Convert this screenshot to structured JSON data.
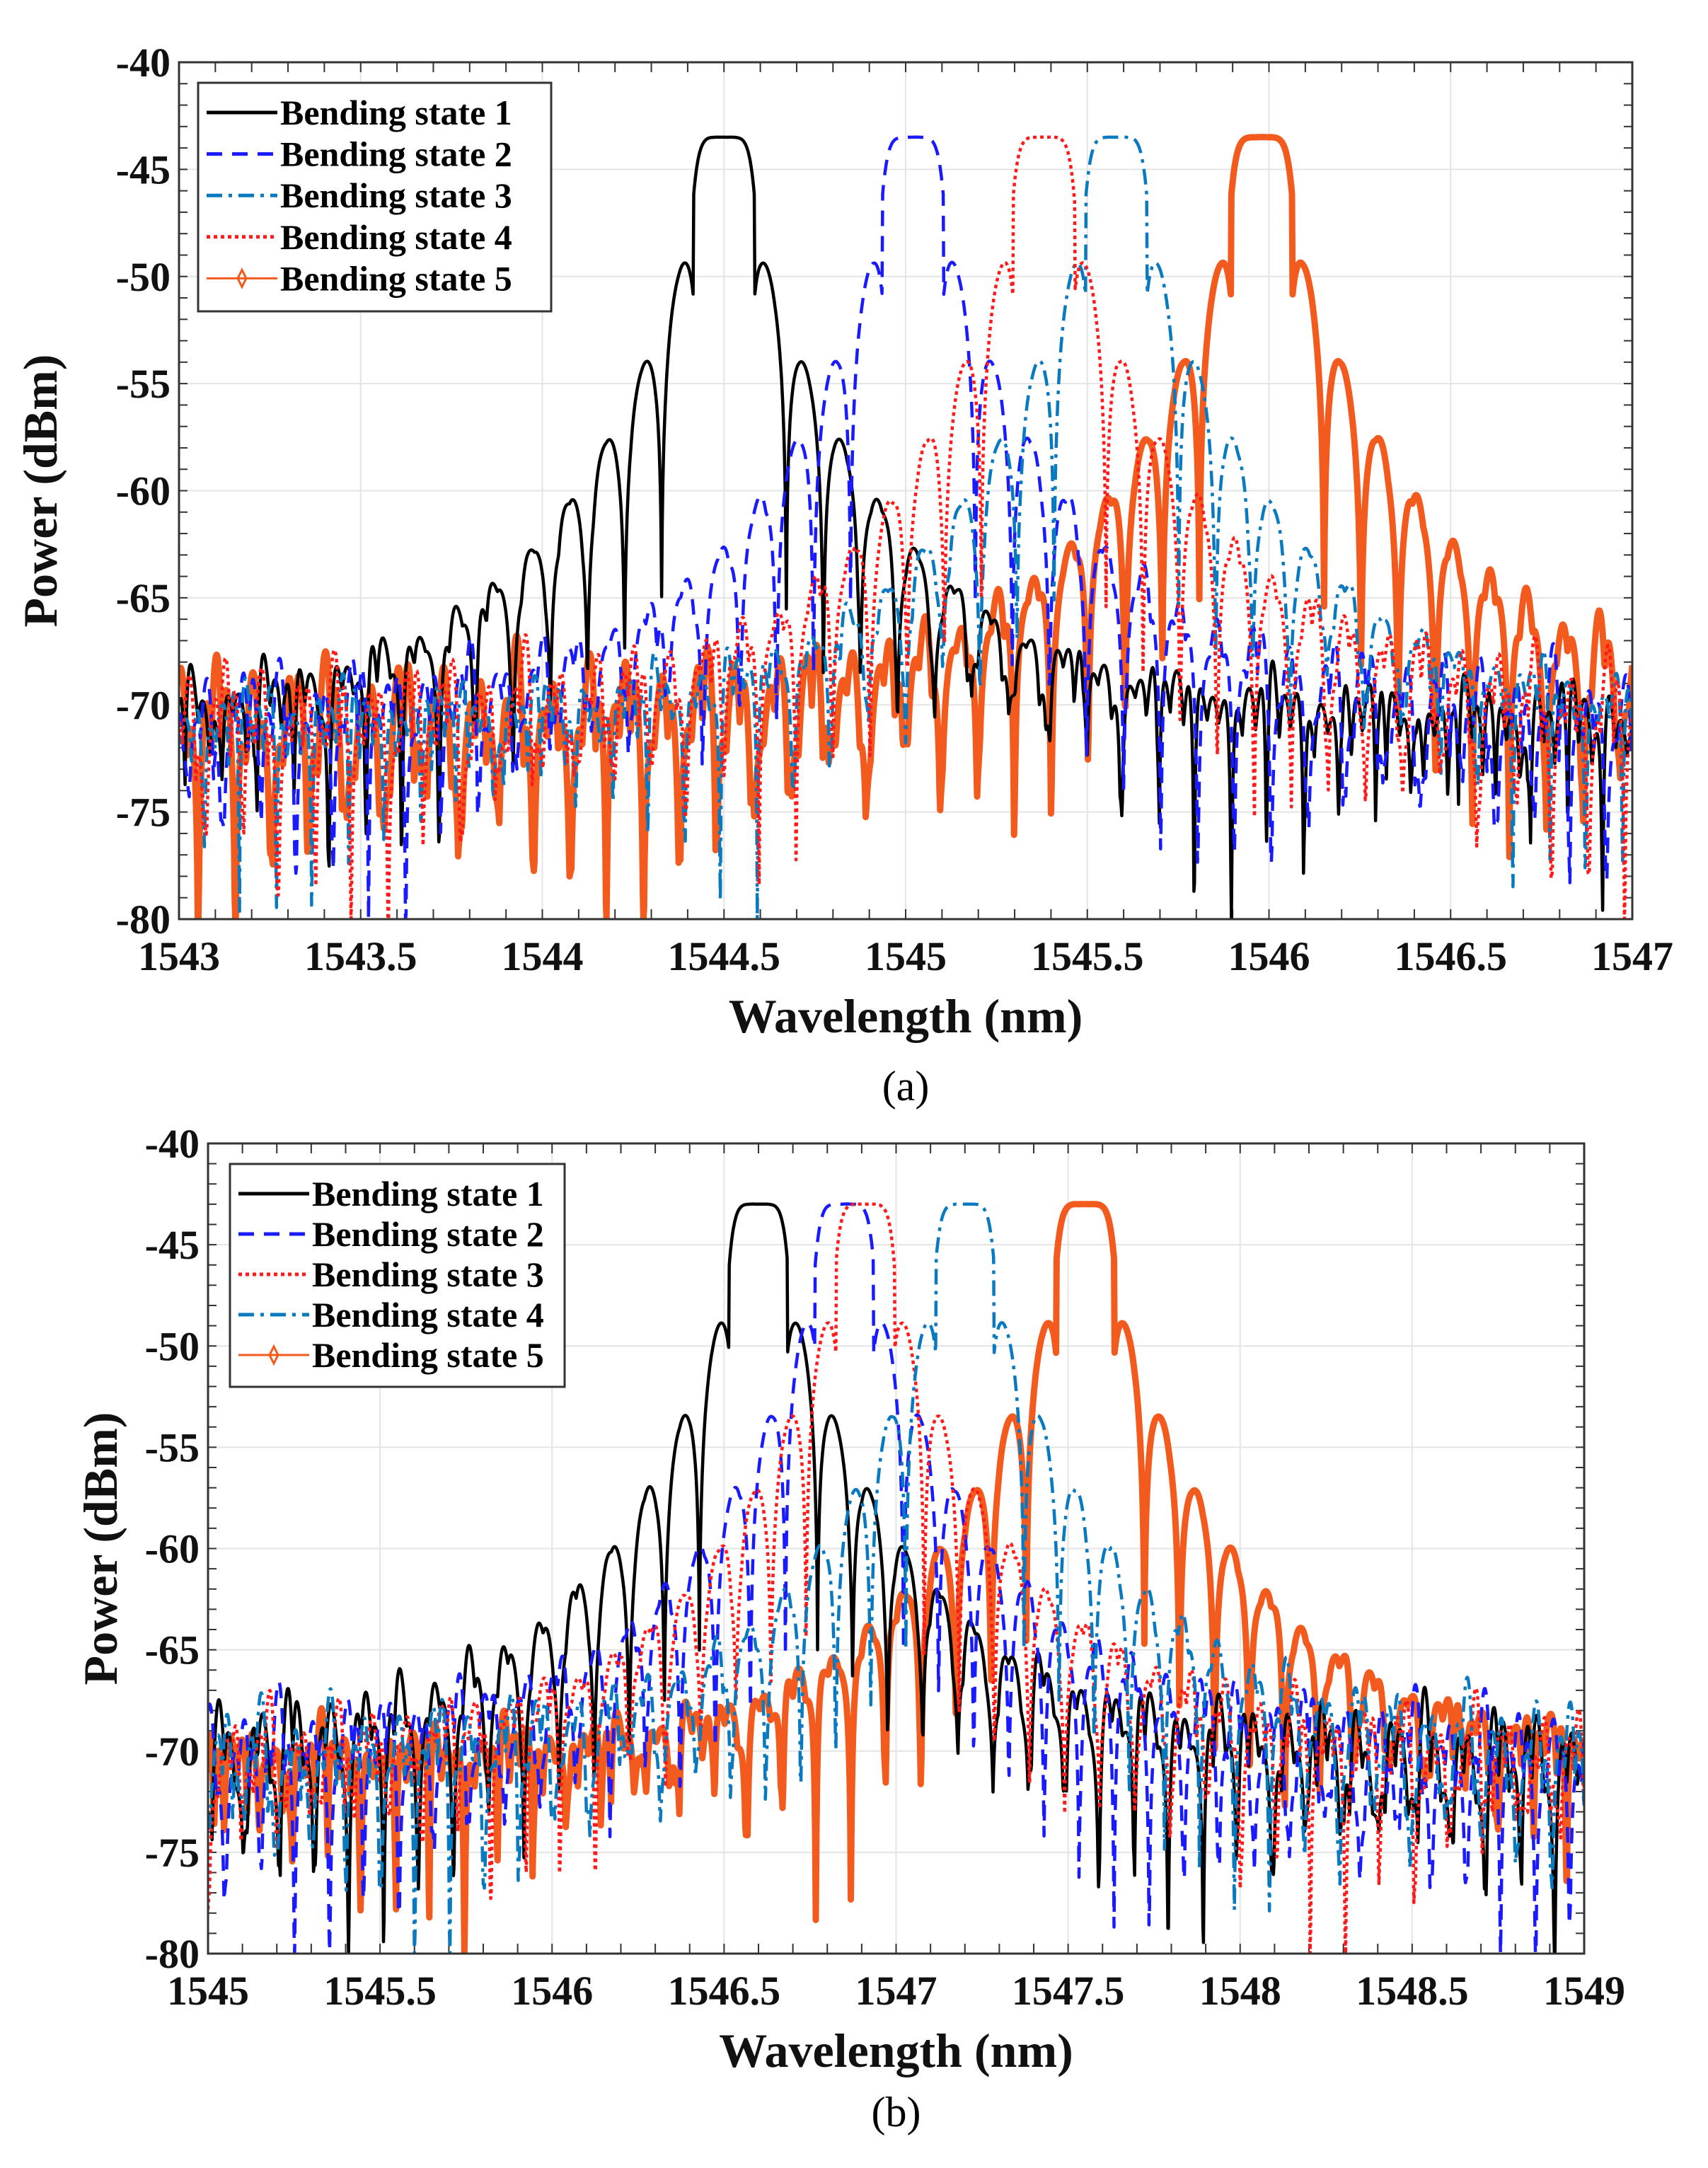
{
  "chart_data": [
    {
      "type": "line",
      "caption": "(a)",
      "xlabel": "Wavelength (nm)",
      "ylabel": "Power (dBm)",
      "xlim": [
        1543,
        1547
      ],
      "ylim": [
        -80,
        -40
      ],
      "xticks": [
        1543,
        1543.5,
        1544,
        1544.5,
        1545,
        1545.5,
        1546,
        1546.5,
        1547
      ],
      "yticks": [
        -40,
        -45,
        -50,
        -55,
        -60,
        -65,
        -70,
        -75,
        -80
      ],
      "grid": true,
      "legend_position": "top-left",
      "series": [
        {
          "name": "Bending state 1",
          "color": "#000000",
          "style": "solid",
          "peak_wavelength": 1544.5,
          "peak_power": -43.5
        },
        {
          "name": "Bending state 2",
          "color": "#1a1aff",
          "style": "dashed",
          "peak_wavelength": 1545.02,
          "peak_power": -43.5
        },
        {
          "name": "Bending state 3",
          "color": "#0a7ac0",
          "style": "dashdot",
          "peak_wavelength": 1545.58,
          "peak_power": -43.5
        },
        {
          "name": "Bending state 4",
          "color": "#ff1a1a",
          "style": "dotted",
          "peak_wavelength": 1545.38,
          "peak_power": -43.5
        },
        {
          "name": "Bending state 5",
          "color": "#f25a1e",
          "style": "diamond-marker",
          "peak_wavelength": 1545.98,
          "peak_power": -43.5
        }
      ]
    },
    {
      "type": "line",
      "caption": "(b)",
      "xlabel": "Wavelength (nm)",
      "ylabel": "Power (dBm)",
      "xlim": [
        1545,
        1549
      ],
      "ylim": [
        -80,
        -40
      ],
      "xticks": [
        1545,
        1545.5,
        1546,
        1546.5,
        1547,
        1547.5,
        1548,
        1548.5,
        1549
      ],
      "yticks": [
        -40,
        -45,
        -50,
        -55,
        -60,
        -65,
        -70,
        -75,
        -80
      ],
      "grid": true,
      "legend_position": "top-left",
      "series": [
        {
          "name": "Bending state 1",
          "color": "#000000",
          "style": "solid",
          "peak_wavelength": 1546.6,
          "peak_power": -43
        },
        {
          "name": "Bending state 2",
          "color": "#1a1aff",
          "style": "dashed",
          "peak_wavelength": 1546.85,
          "peak_power": -43
        },
        {
          "name": "Bending state 3",
          "color": "#ff1a1a",
          "style": "dotted",
          "peak_wavelength": 1546.91,
          "peak_power": -43
        },
        {
          "name": "Bending state 4",
          "color": "#0a7ac0",
          "style": "dashdot",
          "peak_wavelength": 1547.2,
          "peak_power": -43
        },
        {
          "name": "Bending state 5",
          "color": "#f25a1e",
          "style": "diamond-marker",
          "peak_wavelength": 1547.55,
          "peak_power": -43
        }
      ]
    }
  ]
}
